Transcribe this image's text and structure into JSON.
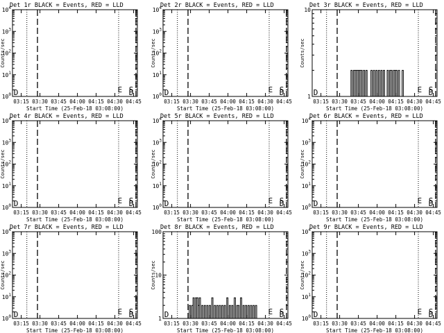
{
  "figure": {
    "xlabel": "Start Time (25-Feb-18 03:08:00)",
    "ylabel": "Counts/sec",
    "x_ticks": [
      "03:15",
      "03:30",
      "03:45",
      "04:00",
      "04:15",
      "04:30",
      "04:45"
    ],
    "x_tick_minutes": [
      7,
      22,
      37,
      52,
      67,
      82,
      97
    ],
    "x_range_minutes": [
      0,
      100
    ]
  },
  "chart_data": [
    {
      "type": "line",
      "title": "Det 1r BLACK = Events, RED = LLD",
      "yscale": "log",
      "ylim": [
        1,
        10000
      ],
      "y_ticks": [
        "10^0",
        "10^1",
        "10^2",
        "10^3",
        "10^4"
      ],
      "y_tick_values": [
        1,
        10,
        100,
        1000,
        10000
      ],
      "dotted_lines": [
        11.5,
        85
      ],
      "dashed_lines": [
        20,
        100
      ],
      "markers": [
        {
          "label": "E",
          "x": 86
        },
        {
          "label": "S",
          "x": 99.5
        },
        {
          "label": "D",
          "x": 99
        },
        {
          "label": "D",
          "x": 0.5
        }
      ],
      "events_x": [],
      "events_y": []
    },
    {
      "type": "line",
      "title": "Det 2r BLACK = Events, RED = LLD",
      "yscale": "log",
      "ylim": [
        1,
        10000
      ],
      "y_ticks": [
        "10^0",
        "10^1",
        "10^2",
        "10^3",
        "10^4"
      ],
      "y_tick_values": [
        1,
        10,
        100,
        1000,
        10000
      ],
      "dotted_lines": [
        11.5,
        85
      ],
      "dashed_lines": [
        20,
        100
      ],
      "markers": [
        {
          "label": "E",
          "x": 86
        },
        {
          "label": "S",
          "x": 99.5
        },
        {
          "label": "D",
          "x": 99
        },
        {
          "label": "D",
          "x": 0.5
        }
      ],
      "events_x": [],
      "events_y": []
    },
    {
      "type": "line",
      "title": "Det 3r BLACK = Events, RED = LLD",
      "yscale": "log",
      "ylim": [
        1,
        10
      ],
      "y_ticks": [
        "1",
        "10"
      ],
      "y_tick_values": [
        1,
        10
      ],
      "dotted_lines": [
        11.5,
        85
      ],
      "dashed_lines": [
        20,
        100
      ],
      "markers": [
        {
          "label": "E",
          "x": 86
        },
        {
          "label": "S",
          "x": 99.5
        },
        {
          "label": "D",
          "x": 99
        },
        {
          "label": "D",
          "x": 0.5
        }
      ],
      "events_x": [
        31,
        33,
        34,
        35,
        36,
        37,
        38,
        39,
        41,
        43,
        47,
        49,
        51,
        53,
        55,
        57,
        60,
        62,
        63,
        65,
        66,
        67,
        69,
        72
      ],
      "events_y": [
        2,
        2,
        2,
        2,
        2,
        2,
        2,
        2,
        2,
        2,
        2,
        2,
        2,
        2,
        2,
        2,
        2,
        2,
        2,
        2,
        2,
        2,
        2,
        2
      ]
    },
    {
      "type": "line",
      "title": "Det 4r BLACK = Events, RED = LLD",
      "yscale": "log",
      "ylim": [
        1,
        10000
      ],
      "y_ticks": [
        "10^0",
        "10^1",
        "10^2",
        "10^3",
        "10^4"
      ],
      "y_tick_values": [
        1,
        10,
        100,
        1000,
        10000
      ],
      "dotted_lines": [
        11.5,
        85
      ],
      "dashed_lines": [
        20,
        100
      ],
      "markers": [
        {
          "label": "E",
          "x": 86
        },
        {
          "label": "S",
          "x": 99.5
        },
        {
          "label": "D",
          "x": 99
        },
        {
          "label": "D",
          "x": 0.5
        }
      ],
      "events_x": [],
      "events_y": []
    },
    {
      "type": "line",
      "title": "Det 5r BLACK = Events, RED = LLD",
      "yscale": "log",
      "ylim": [
        1,
        10000
      ],
      "y_ticks": [
        "10^0",
        "10^1",
        "10^2",
        "10^3",
        "10^4"
      ],
      "y_tick_values": [
        1,
        10,
        100,
        1000,
        10000
      ],
      "dotted_lines": [
        11.5,
        85
      ],
      "dashed_lines": [
        20,
        100
      ],
      "markers": [
        {
          "label": "E",
          "x": 86
        },
        {
          "label": "S",
          "x": 99.5
        },
        {
          "label": "D",
          "x": 99
        },
        {
          "label": "D",
          "x": 0.5
        }
      ],
      "events_x": [],
      "events_y": []
    },
    {
      "type": "line",
      "title": "Det 6r BLACK = Events, RED = LLD",
      "yscale": "log",
      "ylim": [
        1,
        10000
      ],
      "y_ticks": [
        "10^0",
        "10^1",
        "10^2",
        "10^3",
        "10^4"
      ],
      "y_tick_values": [
        1,
        10,
        100,
        1000,
        10000
      ],
      "dotted_lines": [
        11.5,
        85
      ],
      "dashed_lines": [
        20,
        100
      ],
      "markers": [
        {
          "label": "E",
          "x": 86
        },
        {
          "label": "S",
          "x": 99.5
        },
        {
          "label": "D",
          "x": 99
        },
        {
          "label": "D",
          "x": 0.5
        }
      ],
      "events_x": [],
      "events_y": []
    },
    {
      "type": "line",
      "title": "Det 7r BLACK = Events, RED = LLD",
      "yscale": "log",
      "ylim": [
        1,
        10000
      ],
      "y_ticks": [
        "10^0",
        "10^1",
        "10^2",
        "10^3",
        "10^4"
      ],
      "y_tick_values": [
        1,
        10,
        100,
        1000,
        10000
      ],
      "dotted_lines": [
        11.5,
        85
      ],
      "dashed_lines": [
        20,
        100
      ],
      "markers": [
        {
          "label": "E",
          "x": 86
        },
        {
          "label": "S",
          "x": 99.5
        },
        {
          "label": "D",
          "x": 99
        },
        {
          "label": "D",
          "x": 0.5
        }
      ],
      "events_x": [],
      "events_y": []
    },
    {
      "type": "line",
      "title": "Det 8r BLACK = Events, RED = LLD",
      "yscale": "log",
      "ylim": [
        1,
        100
      ],
      "y_ticks": [
        "1",
        "10",
        "100"
      ],
      "y_tick_values": [
        1,
        10,
        100
      ],
      "dotted_lines": [
        11.5,
        85
      ],
      "dashed_lines": [
        20,
        100
      ],
      "markers": [
        {
          "label": "E",
          "x": 86
        },
        {
          "label": "S",
          "x": 99.5
        },
        {
          "label": "D",
          "x": 99
        },
        {
          "label": "D",
          "x": 0.5
        }
      ],
      "events_x": [
        21,
        23,
        24,
        26,
        27,
        28,
        29,
        31,
        33,
        35,
        37,
        39,
        41,
        43,
        45,
        47,
        49,
        51,
        53,
        55,
        57,
        59,
        60,
        62,
        64,
        66,
        68,
        70,
        72,
        74
      ],
      "events_y": [
        2,
        2,
        3,
        3,
        3,
        2,
        3,
        2,
        2,
        2,
        2,
        3,
        2,
        2,
        2,
        2,
        2,
        3,
        2,
        2,
        3,
        2,
        2,
        3,
        2,
        2,
        2,
        2,
        2,
        2
      ]
    },
    {
      "type": "line",
      "title": "Det 9r BLACK = Events, RED = LLD",
      "yscale": "log",
      "ylim": [
        1,
        10000
      ],
      "y_ticks": [
        "10^0",
        "10^1",
        "10^2",
        "10^3",
        "10^4"
      ],
      "y_tick_values": [
        1,
        10,
        100,
        1000,
        10000
      ],
      "dotted_lines": [
        11.5,
        85
      ],
      "dashed_lines": [
        20,
        100
      ],
      "markers": [
        {
          "label": "E",
          "x": 86
        },
        {
          "label": "S",
          "x": 99.5
        },
        {
          "label": "D",
          "x": 99
        },
        {
          "label": "D",
          "x": 0.5
        }
      ],
      "events_x": [],
      "events_y": []
    }
  ]
}
